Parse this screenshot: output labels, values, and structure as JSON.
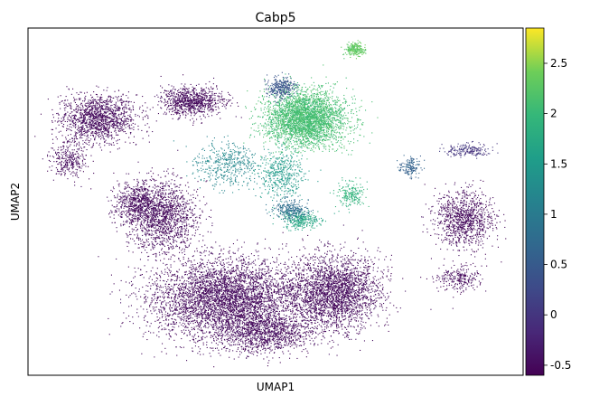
{
  "chart_data": {
    "type": "scatter",
    "title": "Cabp5",
    "xlabel": "UMAP1",
    "ylabel": "UMAP2",
    "x_ticks": [],
    "y_ticks": [],
    "colorbar": {
      "colormap": "viridis",
      "vmin": -0.6,
      "vmax": 2.85,
      "ticks": [
        -0.5,
        0,
        0.5,
        1,
        1.5,
        2,
        2.5
      ],
      "tick_labels": [
        "-0.5",
        "0",
        "0.5",
        "1",
        "1.5",
        "2",
        "2.5"
      ]
    },
    "clusters": [
      {
        "cx": 0.14,
        "cy": 0.74,
        "rx": 0.085,
        "ry": 0.075,
        "n": 1400,
        "value": -0.5
      },
      {
        "cx": 0.33,
        "cy": 0.79,
        "rx": 0.07,
        "ry": 0.045,
        "n": 900,
        "value": -0.5
      },
      {
        "cx": 0.08,
        "cy": 0.62,
        "rx": 0.04,
        "ry": 0.06,
        "n": 300,
        "value": -0.5
      },
      {
        "cx": 0.27,
        "cy": 0.46,
        "rx": 0.08,
        "ry": 0.11,
        "n": 1500,
        "value": -0.5
      },
      {
        "cx": 0.22,
        "cy": 0.5,
        "rx": 0.05,
        "ry": 0.06,
        "n": 500,
        "value": -0.5
      },
      {
        "cx": 0.4,
        "cy": 0.22,
        "rx": 0.17,
        "ry": 0.13,
        "n": 4500,
        "value": -0.5
      },
      {
        "cx": 0.62,
        "cy": 0.24,
        "rx": 0.1,
        "ry": 0.12,
        "n": 2500,
        "value": -0.5
      },
      {
        "cx": 0.48,
        "cy": 0.12,
        "rx": 0.1,
        "ry": 0.06,
        "n": 1000,
        "value": -0.5
      },
      {
        "cx": 0.88,
        "cy": 0.45,
        "rx": 0.065,
        "ry": 0.09,
        "n": 1000,
        "value": -0.5
      },
      {
        "cx": 0.87,
        "cy": 0.28,
        "rx": 0.05,
        "ry": 0.04,
        "n": 250,
        "value": -0.5
      },
      {
        "cx": 0.89,
        "cy": 0.65,
        "rx": 0.05,
        "ry": 0.02,
        "n": 200,
        "value": 0.0
      },
      {
        "cx": 0.56,
        "cy": 0.74,
        "rx": 0.09,
        "ry": 0.09,
        "n": 3200,
        "value": 2.1
      },
      {
        "cx": 0.51,
        "cy": 0.83,
        "rx": 0.03,
        "ry": 0.035,
        "n": 300,
        "value": 0.4
      },
      {
        "cx": 0.66,
        "cy": 0.94,
        "rx": 0.025,
        "ry": 0.02,
        "n": 220,
        "value": 2.3
      },
      {
        "cx": 0.4,
        "cy": 0.61,
        "rx": 0.07,
        "ry": 0.07,
        "n": 450,
        "value": 1.2
      },
      {
        "cx": 0.51,
        "cy": 0.58,
        "rx": 0.05,
        "ry": 0.08,
        "n": 450,
        "value": 1.5
      },
      {
        "cx": 0.55,
        "cy": 0.45,
        "rx": 0.04,
        "ry": 0.03,
        "n": 300,
        "value": 1.7
      },
      {
        "cx": 0.53,
        "cy": 0.48,
        "rx": 0.04,
        "ry": 0.03,
        "n": 260,
        "value": 0.8
      },
      {
        "cx": 0.65,
        "cy": 0.52,
        "rx": 0.03,
        "ry": 0.04,
        "n": 200,
        "value": 1.9
      },
      {
        "cx": 0.77,
        "cy": 0.6,
        "rx": 0.025,
        "ry": 0.03,
        "n": 150,
        "value": 0.6
      }
    ]
  }
}
